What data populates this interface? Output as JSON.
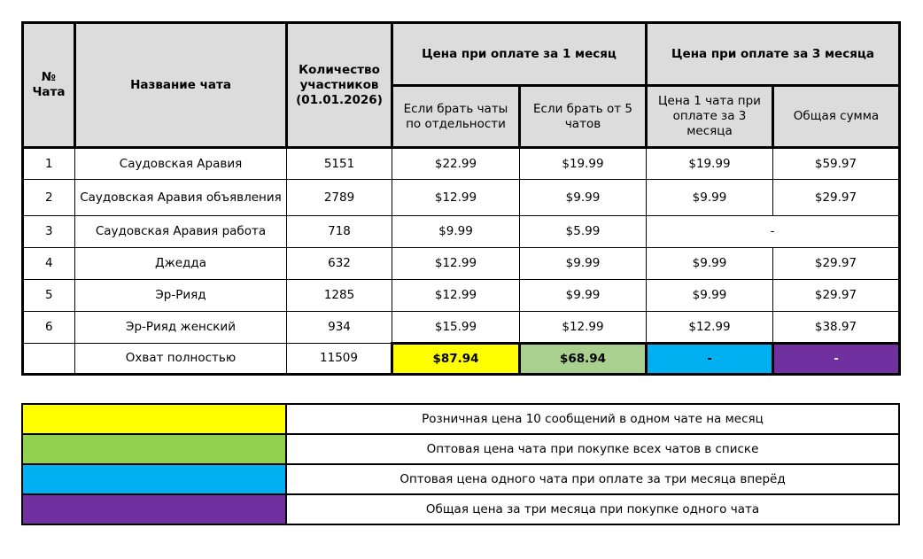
{
  "headers": {
    "num": "№ Чата",
    "name": "Название чата",
    "members": "Количество участников (01.01.2026)",
    "month1": "Цена при оплате за 1 месяц",
    "month3": "Цена при оплате за 3 месяца",
    "separate": "Если брать чаты по отдельности",
    "from5": "Если брать от 5 чатов",
    "price3": "Цена 1 чата при оплате за 3 месяца",
    "total3": "Общая сумма"
  },
  "rows": [
    {
      "num": "1",
      "name": "Саудовская Аравия",
      "members": "5151",
      "separate": "$22.99",
      "from5": "$19.99",
      "price3": "$19.99",
      "total3": "$59.97"
    },
    {
      "num": "2",
      "name": "Саудовская Аравия объявления",
      "members": "2789",
      "separate": "$12.99",
      "from5": "$9.99",
      "price3": "$9.99",
      "total3": "$29.97"
    },
    {
      "num": "3",
      "name": "Саудовская Аравия работа",
      "members": "718",
      "separate": "$9.99",
      "from5": "$5.99",
      "merged": "-"
    },
    {
      "num": "4",
      "name": "Джедда",
      "members": "632",
      "separate": "$12.99",
      "from5": "$9.99",
      "price3": "$9.99",
      "total3": "$29.97"
    },
    {
      "num": "5",
      "name": "Эр-Рияд",
      "members": "1285",
      "separate": "$12.99",
      "from5": "$9.99",
      "price3": "$9.99",
      "total3": "$29.97"
    },
    {
      "num": "6",
      "name": "Эр-Рияд женский",
      "members": "934",
      "separate": "$15.99",
      "from5": "$12.99",
      "price3": "$12.99",
      "total3": "$38.97"
    }
  ],
  "total": {
    "name": "Охват полностью",
    "members": "11509",
    "separate": "$87.94",
    "from5": "$68.94",
    "price3": "-",
    "total3": "-"
  },
  "colors": {
    "yellow": "#FFFF00",
    "green": "#92D050",
    "total_green": "#A9D08E",
    "blue": "#00B0F0",
    "purple": "#7030A0",
    "header_gray": "#DCDCDC"
  },
  "legend": [
    {
      "color": "#FFFF00",
      "text": "Розничная цена 10 сообщений в одном чате на месяц"
    },
    {
      "color": "#92D050",
      "text": "Оптовая цена чата при покупке всех чатов в списке"
    },
    {
      "color": "#00B0F0",
      "text": "Оптовая цена одного чата при оплате за три месяца вперёд"
    },
    {
      "color": "#7030A0",
      "text": "Общая цена за три месяца при покупке одного чата"
    }
  ]
}
